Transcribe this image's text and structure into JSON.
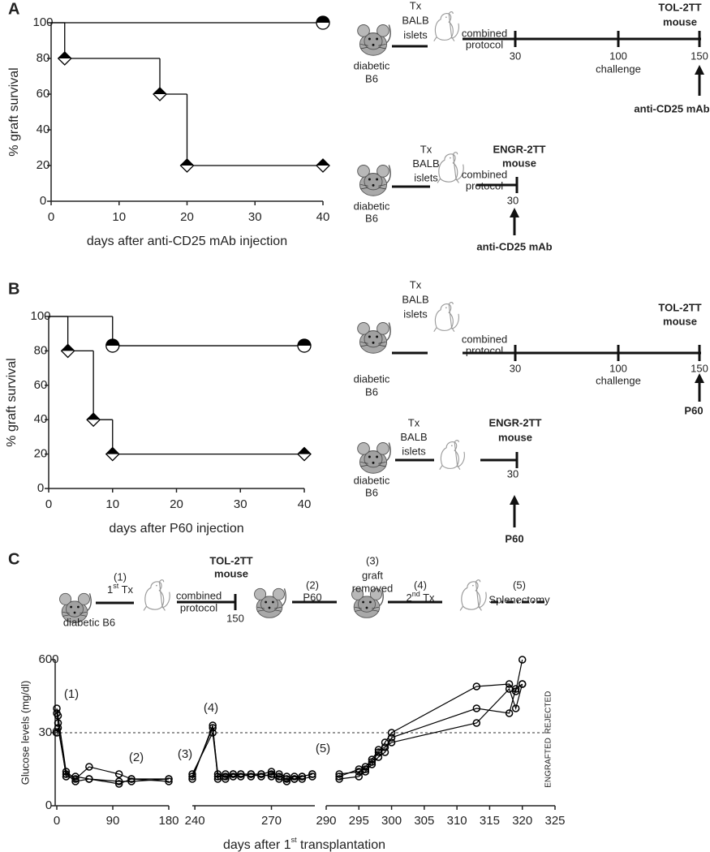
{
  "panel_labels": [
    "A",
    "B",
    "C"
  ],
  "chart_data": [
    {
      "type": "step",
      "xlabel": "days after anti-CD25 mAb injection",
      "ylabel": "% graft survival",
      "xlim": [
        0,
        40
      ],
      "xticks": [
        0,
        10,
        20,
        30,
        40
      ],
      "ylim": [
        0,
        100
      ],
      "yticks": [
        0,
        20,
        40,
        60,
        80,
        100
      ],
      "series": [
        {
          "color": "#000000",
          "marker": "half-circle",
          "x": [
            0,
            40
          ],
          "values": [
            100,
            100
          ]
        },
        {
          "color": "#000000",
          "marker": "half-diamond",
          "x": [
            0,
            2,
            16,
            20,
            40
          ],
          "values": [
            100,
            80,
            60,
            20,
            20
          ]
        }
      ]
    },
    {
      "type": "step",
      "xlabel": "days after P60 injection",
      "ylabel": "% graft survival",
      "xlim": [
        0,
        40
      ],
      "xticks": [
        0,
        10,
        20,
        30,
        40
      ],
      "ylim": [
        0,
        100
      ],
      "yticks": [
        0,
        20,
        40,
        60,
        80,
        100
      ],
      "series": [
        {
          "color": "#000000",
          "marker": "half-circle",
          "x": [
            0,
            10,
            40
          ],
          "values": [
            100,
            83,
            83
          ]
        },
        {
          "color": "#000000",
          "marker": "half-diamond",
          "x": [
            0,
            3,
            7,
            10,
            40
          ],
          "values": [
            100,
            80,
            40,
            20,
            20
          ]
        }
      ]
    },
    {
      "type": "line",
      "xlabel": [
        "days after 1",
        "st",
        " transplantation"
      ],
      "ylabel": "Glucose  levels (mg/dl)",
      "ylim": [
        0,
        600
      ],
      "yticks": [
        0,
        300,
        600
      ],
      "threshold": 300,
      "region_labels": [
        "REJECTED",
        "ENGRAFTED"
      ],
      "annotations": [
        "(1)",
        "(2)",
        "(3)",
        "(4)",
        "(5)"
      ],
      "x_segments": [
        {
          "xlim": [
            0,
            180
          ],
          "xticks": [
            0,
            90,
            180
          ]
        },
        {
          "xlim": [
            239,
            287
          ],
          "xticks": [
            240,
            270
          ]
        },
        {
          "xlim": [
            290,
            325
          ],
          "xticks": [
            290,
            295,
            300,
            305,
            310,
            315,
            320,
            325
          ]
        }
      ],
      "series": [
        {
          "color": "#000000",
          "x": [
            0,
            2,
            15,
            30,
            52,
            100,
            120,
            180,
            null,
            239,
            247,
            249,
            252,
            255,
            258,
            262,
            266,
            270,
            273,
            276,
            279,
            282,
            286,
            null,
            292,
            295,
            296,
            297,
            298,
            299,
            300,
            313,
            318,
            319,
            320
          ],
          "values": [
            400,
            370,
            140,
            110,
            160,
            130,
            110,
            100,
            null,
            120,
            320,
            130,
            120,
            130,
            130,
            130,
            130,
            140,
            120,
            110,
            110,
            120,
            130,
            null,
            120,
            150,
            150,
            180,
            220,
            260,
            300,
            490,
            500,
            470,
            600
          ]
        },
        {
          "color": "#000000",
          "x": [
            0,
            2,
            15,
            30,
            52,
            100,
            120,
            180,
            null,
            239,
            247,
            249,
            252,
            255,
            258,
            262,
            266,
            270,
            273,
            276,
            279,
            282,
            286,
            null,
            292,
            295,
            296,
            297,
            298,
            299,
            300,
            313,
            318,
            319,
            320
          ],
          "values": [
            380,
            340,
            120,
            120,
            110,
            100,
            100,
            110,
            null,
            130,
            300,
            120,
            130,
            120,
            130,
            120,
            130,
            120,
            110,
            100,
            120,
            110,
            120,
            null,
            110,
            120,
            140,
            170,
            200,
            220,
            280,
            400,
            380,
            480,
            500
          ]
        },
        {
          "color": "#000000",
          "x": [
            0,
            2,
            15,
            30,
            52,
            100,
            120,
            180,
            null,
            239,
            247,
            249,
            252,
            255,
            258,
            262,
            266,
            270,
            273,
            276,
            279,
            282,
            286,
            null,
            292,
            295,
            296,
            297,
            298,
            299,
            300,
            313,
            318,
            319,
            320
          ],
          "values": [
            300,
            320,
            130,
            100,
            110,
            90,
            110,
            110,
            null,
            110,
            330,
            110,
            110,
            130,
            120,
            130,
            120,
            130,
            130,
            120,
            110,
            120,
            130,
            null,
            130,
            140,
            160,
            190,
            230,
            240,
            260,
            340,
            480,
            400,
            500
          ]
        }
      ]
    }
  ],
  "schematics": {
    "a_tol": {
      "graft": [
        "Tx",
        "BALB",
        "islets"
      ],
      "recipient": [
        "diabetic",
        "B6"
      ],
      "protocol": [
        "combined",
        "protocol"
      ],
      "timeline": [
        "30",
        "100",
        "150"
      ],
      "challenge": "challenge",
      "model": [
        "TOL-2TT",
        "mouse"
      ],
      "treatment": "anti-CD25 mAb"
    },
    "a_engr": {
      "graft": [
        "Tx",
        "BALB",
        "islets"
      ],
      "recipient": [
        "diabetic",
        "B6"
      ],
      "protocol": [
        "combined",
        "protocol"
      ],
      "timeline": [
        "30"
      ],
      "model": [
        "ENGR-2TT",
        "mouse"
      ],
      "treatment": "anti-CD25 mAb"
    },
    "b_tol": {
      "graft": [
        "Tx",
        "BALB",
        "islets"
      ],
      "recipient": [
        "diabetic",
        "B6"
      ],
      "protocol": [
        "combined",
        "protocol"
      ],
      "timeline": [
        "30",
        "100",
        "150"
      ],
      "challenge": "challenge",
      "model": [
        "TOL-2TT",
        "mouse"
      ],
      "treatment": "P60"
    },
    "b_engr": {
      "graft": [
        "Tx",
        "BALB",
        "islets"
      ],
      "recipient": [
        "diabetic",
        "B6"
      ],
      "timeline": [
        "30"
      ],
      "model": [
        "ENGR-2TT",
        "mouse"
      ],
      "treatment": "P60"
    },
    "c": {
      "recipient": "diabetic B6",
      "step1_num": "(1)",
      "step1": [
        "1",
        "st",
        " Tx"
      ],
      "model": [
        "TOL-2TT",
        "mouse"
      ],
      "protocol": [
        "combined",
        "protocol"
      ],
      "timepoint": "150",
      "step2_num": "(2)",
      "step2": "P60",
      "step3_num": "(3)",
      "step3": [
        "graft",
        "removed"
      ],
      "step4_num": "(4)",
      "step4": [
        "2",
        "nd",
        " Tx"
      ],
      "step5_num": "(5)",
      "step5": "Splenectomy"
    }
  }
}
